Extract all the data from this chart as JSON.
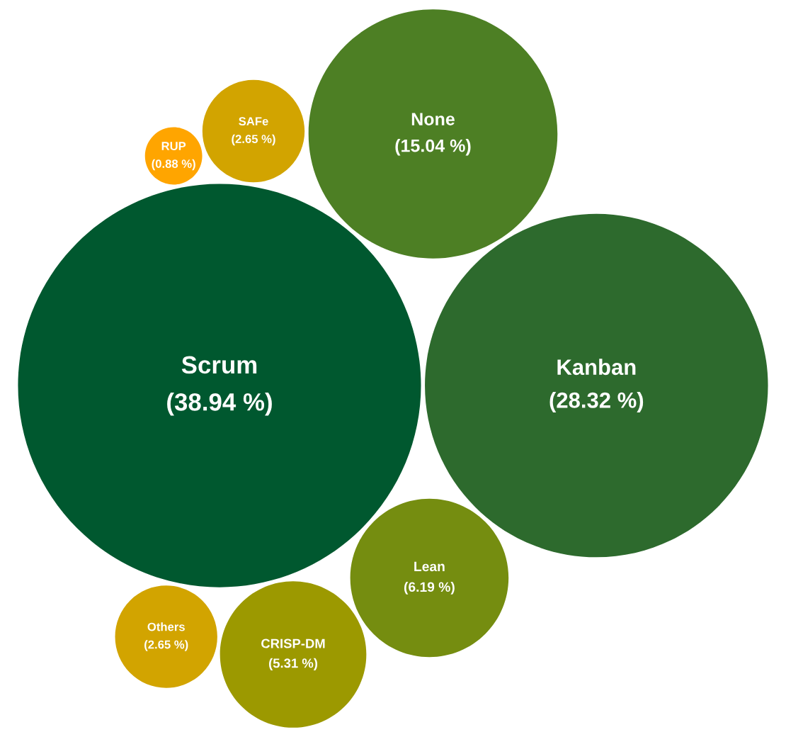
{
  "chart_data": {
    "type": "other",
    "categories": [
      "Scrum",
      "Kanban",
      "None",
      "Lean",
      "CRISP-DM",
      "SAFe",
      "Others",
      "RUP"
    ],
    "values": [
      38.94,
      28.32,
      15.04,
      6.19,
      5.31,
      2.65,
      2.65,
      0.88
    ],
    "value_labels": [
      "(38.94 %)",
      "(28.32 %)",
      "(15.04 %)",
      "(6.19 %)",
      "(5.31 %)",
      "(2.65 %)",
      "(2.65 %)",
      "(0.88 %)"
    ],
    "colors": [
      "#00582f",
      "#2d6a2d",
      "#4d7f24",
      "#758d10",
      "#9c9900",
      "#d2a400",
      "#d2a400",
      "#ffa500"
    ],
    "legend": false
  }
}
